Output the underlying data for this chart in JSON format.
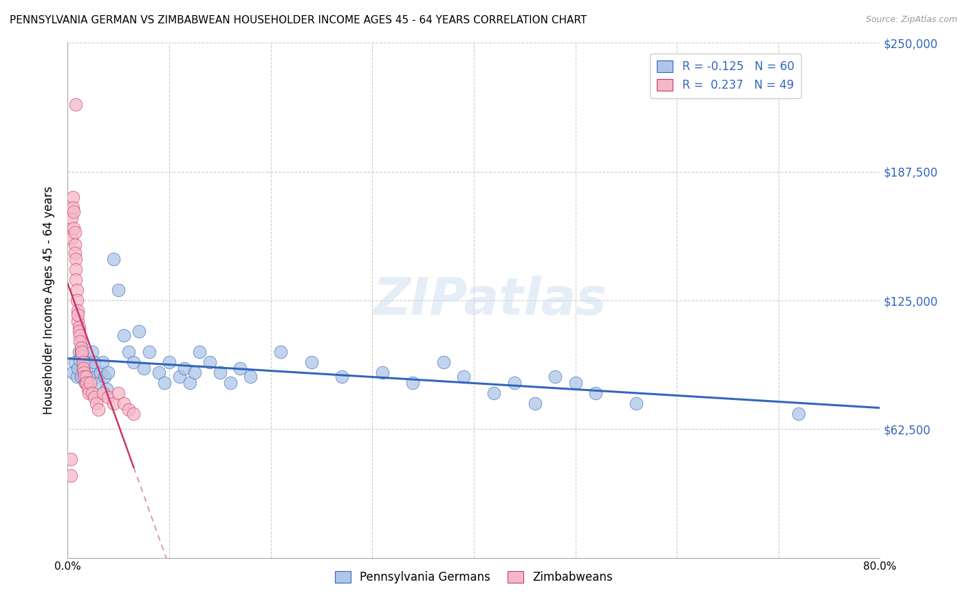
{
  "title": "PENNSYLVANIA GERMAN VS ZIMBABWEAN HOUSEHOLDER INCOME AGES 45 - 64 YEARS CORRELATION CHART",
  "source": "Source: ZipAtlas.com",
  "ylabel": "Householder Income Ages 45 - 64 years",
  "xlim": [
    0,
    0.8
  ],
  "ylim": [
    0,
    250000
  ],
  "xticks": [
    0.0,
    0.1,
    0.2,
    0.3,
    0.4,
    0.5,
    0.6,
    0.7,
    0.8
  ],
  "xticklabels": [
    "0.0%",
    "",
    "",
    "",
    "",
    "",
    "",
    "",
    "80.0%"
  ],
  "ytick_values": [
    0,
    62500,
    125000,
    187500,
    250000
  ],
  "ytick_labels": [
    "",
    "$62,500",
    "$125,000",
    "$187,500",
    "$250,000"
  ],
  "blue_color": "#aec6e8",
  "pink_color": "#f5b8c8",
  "blue_line_color": "#3366bb",
  "pink_line_color": "#cc3366",
  "legend_blue_label": "R = -0.125   N = 60",
  "legend_pink_label": "R =  0.237   N = 49",
  "legend_pennsylvania": "Pennsylvania Germans",
  "legend_zimbabweans": "Zimbabweans",
  "watermark": "ZIPatlas",
  "blue_scatter_x": [
    0.005,
    0.007,
    0.009,
    0.01,
    0.011,
    0.012,
    0.013,
    0.014,
    0.015,
    0.016,
    0.017,
    0.018,
    0.019,
    0.02,
    0.022,
    0.024,
    0.026,
    0.028,
    0.03,
    0.032,
    0.034,
    0.036,
    0.038,
    0.04,
    0.045,
    0.05,
    0.055,
    0.06,
    0.065,
    0.07,
    0.075,
    0.08,
    0.09,
    0.095,
    0.1,
    0.11,
    0.115,
    0.12,
    0.125,
    0.13,
    0.14,
    0.15,
    0.16,
    0.17,
    0.18,
    0.21,
    0.24,
    0.27,
    0.31,
    0.34,
    0.37,
    0.39,
    0.42,
    0.44,
    0.46,
    0.48,
    0.5,
    0.52,
    0.56,
    0.72
  ],
  "blue_scatter_y": [
    90000,
    95000,
    88000,
    92000,
    100000,
    96000,
    88000,
    105000,
    92000,
    98000,
    85000,
    90000,
    95000,
    88000,
    92000,
    100000,
    95000,
    88000,
    85000,
    90000,
    95000,
    88000,
    82000,
    90000,
    145000,
    130000,
    108000,
    100000,
    95000,
    110000,
    92000,
    100000,
    90000,
    85000,
    95000,
    88000,
    92000,
    85000,
    90000,
    100000,
    95000,
    90000,
    85000,
    92000,
    88000,
    100000,
    95000,
    88000,
    90000,
    85000,
    95000,
    88000,
    80000,
    85000,
    75000,
    88000,
    85000,
    80000,
    75000,
    70000
  ],
  "pink_scatter_x": [
    0.003,
    0.003,
    0.004,
    0.004,
    0.005,
    0.005,
    0.006,
    0.006,
    0.007,
    0.007,
    0.007,
    0.008,
    0.008,
    0.008,
    0.008,
    0.009,
    0.009,
    0.01,
    0.01,
    0.01,
    0.011,
    0.011,
    0.012,
    0.012,
    0.013,
    0.013,
    0.014,
    0.014,
    0.015,
    0.015,
    0.016,
    0.016,
    0.017,
    0.018,
    0.019,
    0.02,
    0.021,
    0.022,
    0.024,
    0.026,
    0.028,
    0.03,
    0.035,
    0.04,
    0.045,
    0.05,
    0.055,
    0.06,
    0.065
  ],
  "pink_scatter_y": [
    48000,
    40000,
    165000,
    155000,
    175000,
    170000,
    168000,
    160000,
    158000,
    152000,
    148000,
    145000,
    140000,
    135000,
    220000,
    130000,
    125000,
    120000,
    115000,
    118000,
    112000,
    110000,
    108000,
    105000,
    100000,
    102000,
    98000,
    100000,
    95000,
    92000,
    90000,
    88000,
    85000,
    88000,
    85000,
    82000,
    80000,
    85000,
    80000,
    78000,
    75000,
    72000,
    80000,
    78000,
    75000,
    80000,
    75000,
    72000,
    70000
  ]
}
